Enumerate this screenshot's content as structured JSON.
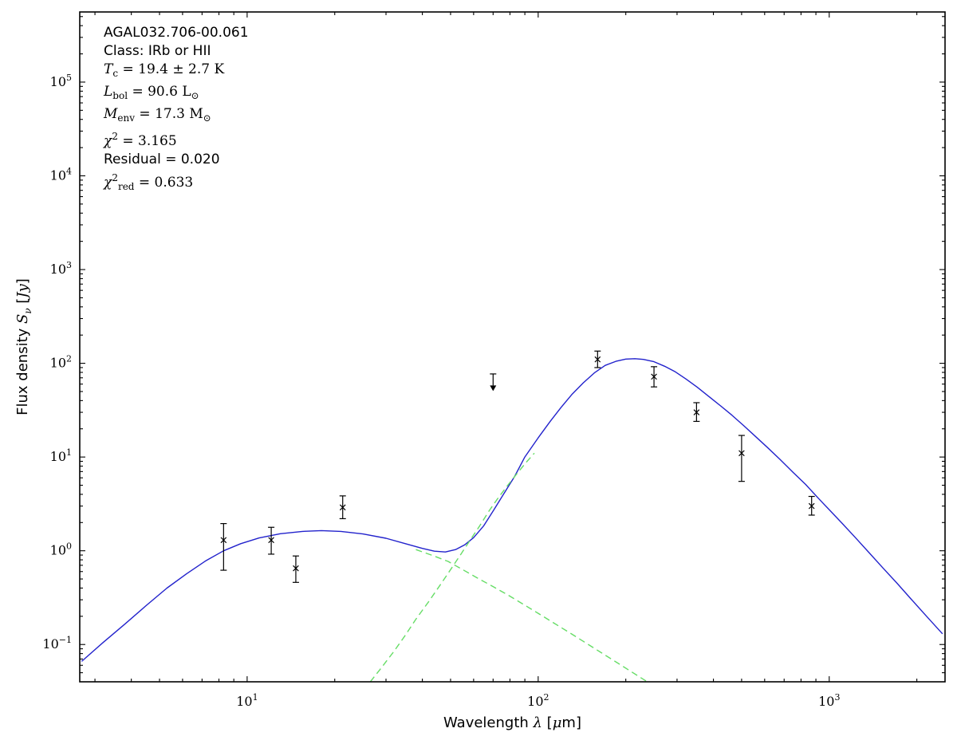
{
  "colors": {
    "background": "#ffffff",
    "frame": "#000000",
    "model_total": "#2222cc",
    "model_components": "#66dd66",
    "data_points": "#000000"
  },
  "annotation": {
    "lines": [
      {
        "font": "sans",
        "segments": [
          [
            "AGAL032.706-00.061",
            "rm"
          ]
        ]
      },
      {
        "font": "sans",
        "segments": [
          [
            "Class: IRb or HII",
            "rm"
          ]
        ]
      },
      {
        "font": "serif",
        "segments": [
          [
            "T",
            "it"
          ],
          [
            "c",
            "sub"
          ],
          [
            " = 19.4 ± 2.7 K",
            "rm"
          ]
        ]
      },
      {
        "font": "serif",
        "segments": [
          [
            "L",
            "it"
          ],
          [
            "bol",
            "sub"
          ],
          [
            " = 90.6 L",
            "rm"
          ],
          [
            "⊙",
            "sub"
          ]
        ]
      },
      {
        "font": "serif",
        "segments": [
          [
            "M",
            "it"
          ],
          [
            "env",
            "sub"
          ],
          [
            " = 17.3 M",
            "rm"
          ],
          [
            "⊙",
            "sub"
          ]
        ]
      },
      {
        "font": "serif",
        "segments": [
          [
            "χ",
            "it"
          ],
          [
            "2",
            "sup"
          ],
          [
            " = 3.165",
            "rm"
          ]
        ]
      },
      {
        "font": "sans",
        "segments": [
          [
            "Residual = 0.020",
            "rm"
          ]
        ]
      },
      {
        "font": "serif",
        "segments": [
          [
            "χ",
            "it"
          ],
          [
            "2",
            "sup"
          ],
          [
            "red",
            "sub"
          ],
          [
            " = 0.633",
            "rm"
          ]
        ]
      }
    ]
  },
  "chart_data": {
    "type": "line",
    "title": "",
    "x_scale": "log",
    "y_scale": "log",
    "xlim": [
      2.66,
      2500
    ],
    "ylim": [
      0.04,
      560000
    ],
    "x_major_ticks": [
      10,
      100,
      1000
    ],
    "y_major_ticks": [
      0.1,
      1,
      10,
      100,
      1000,
      10000,
      100000
    ],
    "xlabel_segments": [
      [
        "Wavelength ",
        "rm"
      ],
      [
        "λ",
        "it"
      ],
      [
        " [",
        "rm"
      ],
      [
        "μ",
        "it"
      ],
      [
        "m]",
        "rm"
      ]
    ],
    "ylabel_segments": [
      [
        "Flux density ",
        "rm"
      ],
      [
        "S",
        "it"
      ],
      [
        "ν",
        "sub"
      ],
      [
        " [",
        "rm"
      ],
      [
        "Jy",
        "it"
      ],
      [
        "]",
        "rm"
      ]
    ],
    "series": [
      {
        "name": "model-total",
        "style": "solid",
        "color_key": "model_total",
        "points": [
          [
            2.7,
            0.066
          ],
          [
            3.2,
            0.105
          ],
          [
            3.8,
            0.165
          ],
          [
            4.5,
            0.26
          ],
          [
            5.3,
            0.4
          ],
          [
            6.2,
            0.57
          ],
          [
            7.2,
            0.78
          ],
          [
            8.3,
            1.0
          ],
          [
            9.5,
            1.19
          ],
          [
            11,
            1.37
          ],
          [
            13,
            1.52
          ],
          [
            15.5,
            1.61
          ],
          [
            18,
            1.64
          ],
          [
            21,
            1.61
          ],
          [
            25,
            1.51
          ],
          [
            30,
            1.36
          ],
          [
            35,
            1.19
          ],
          [
            40,
            1.06
          ],
          [
            44,
            0.99
          ],
          [
            48,
            0.97
          ],
          [
            52,
            1.03
          ],
          [
            56,
            1.16
          ],
          [
            60,
            1.38
          ],
          [
            65,
            1.85
          ],
          [
            70,
            2.65
          ],
          [
            76,
            4.0
          ],
          [
            83,
            6.2
          ],
          [
            90,
            10
          ],
          [
            100,
            16
          ],
          [
            110,
            24
          ],
          [
            120,
            34
          ],
          [
            131,
            47
          ],
          [
            143,
            62
          ],
          [
            156,
            79
          ],
          [
            170,
            95
          ],
          [
            185,
            105
          ],
          [
            200,
            111
          ],
          [
            215,
            112
          ],
          [
            230,
            110
          ],
          [
            250,
            104
          ],
          [
            272,
            93
          ],
          [
            296,
            81
          ],
          [
            322,
            68
          ],
          [
            352,
            55.5
          ],
          [
            385,
            44.5
          ],
          [
            422,
            35.5
          ],
          [
            463,
            28
          ],
          [
            508,
            21.7
          ],
          [
            558,
            16.6
          ],
          [
            614,
            12.6
          ],
          [
            678,
            9.4
          ],
          [
            750,
            6.9
          ],
          [
            830,
            5.1
          ],
          [
            920,
            3.6
          ],
          [
            1010,
            2.65
          ],
          [
            1110,
            1.95
          ],
          [
            1230,
            1.38
          ],
          [
            1370,
            0.955
          ],
          [
            1530,
            0.655
          ],
          [
            1710,
            0.45
          ],
          [
            1920,
            0.3
          ],
          [
            2160,
            0.2
          ],
          [
            2450,
            0.13
          ]
        ]
      },
      {
        "name": "warm-component",
        "style": "dashed",
        "color_key": "model_components",
        "points": [
          [
            38,
            1.03
          ],
          [
            43,
            0.9
          ],
          [
            49,
            0.77
          ],
          [
            55,
            0.63
          ],
          [
            62,
            0.51
          ],
          [
            70,
            0.415
          ],
          [
            79,
            0.335
          ],
          [
            89,
            0.268
          ],
          [
            100,
            0.215
          ],
          [
            113,
            0.17
          ],
          [
            128,
            0.134
          ],
          [
            145,
            0.105
          ],
          [
            164,
            0.0825
          ],
          [
            186,
            0.0645
          ],
          [
            210,
            0.0508
          ],
          [
            238,
            0.0397
          ],
          [
            260,
            0.0335
          ]
        ]
      },
      {
        "name": "cold-component",
        "style": "dashed",
        "color_key": "model_components",
        "points": [
          [
            26.5,
            0.04
          ],
          [
            29,
            0.057
          ],
          [
            32,
            0.085
          ],
          [
            35,
            0.126
          ],
          [
            38,
            0.186
          ],
          [
            42,
            0.285
          ],
          [
            46,
            0.43
          ],
          [
            50,
            0.63
          ],
          [
            54,
            0.9
          ],
          [
            58,
            1.26
          ],
          [
            63,
            1.85
          ],
          [
            68,
            2.7
          ],
          [
            73,
            3.7
          ],
          [
            79,
            5.1
          ],
          [
            85,
            6.8
          ],
          [
            91,
            8.8
          ],
          [
            97,
            11
          ]
        ]
      }
    ],
    "data_points": [
      {
        "x": 8.3,
        "y": 1.3,
        "lo": 0.62,
        "hi": 1.95,
        "upper_limit": false
      },
      {
        "x": 12.1,
        "y": 1.3,
        "lo": 0.92,
        "hi": 1.78,
        "upper_limit": false
      },
      {
        "x": 14.7,
        "y": 0.65,
        "lo": 0.46,
        "hi": 0.88,
        "upper_limit": false
      },
      {
        "x": 21.3,
        "y": 2.9,
        "lo": 2.2,
        "hi": 3.85,
        "upper_limit": false
      },
      {
        "x": 70,
        "y": 70,
        "lo": 58,
        "hi": 77,
        "upper_limit": true
      },
      {
        "x": 160,
        "y": 110,
        "lo": 90,
        "hi": 135,
        "upper_limit": false
      },
      {
        "x": 250,
        "y": 72,
        "lo": 56,
        "hi": 92,
        "upper_limit": false
      },
      {
        "x": 350,
        "y": 30,
        "lo": 24,
        "hi": 38,
        "upper_limit": false
      },
      {
        "x": 500,
        "y": 11,
        "lo": 5.5,
        "hi": 17,
        "upper_limit": false
      },
      {
        "x": 870,
        "y": 3.0,
        "lo": 2.4,
        "hi": 3.8,
        "upper_limit": false
      }
    ]
  }
}
